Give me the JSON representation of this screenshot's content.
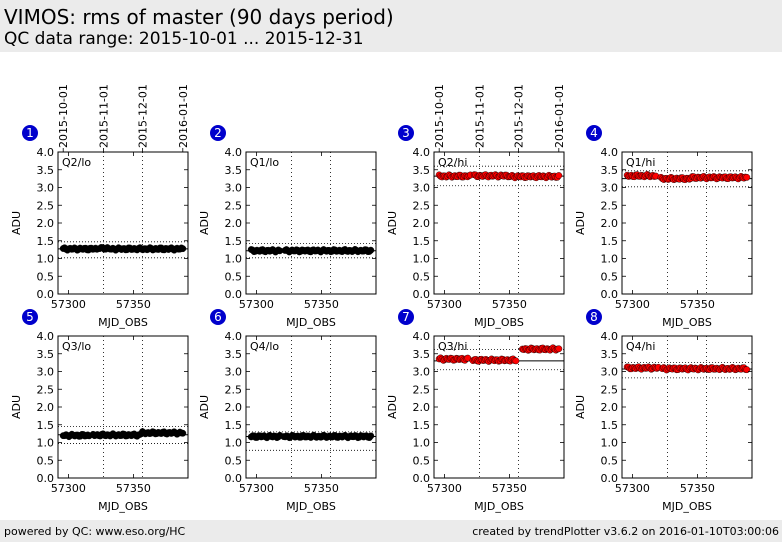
{
  "header": {
    "title": "VIMOS: rms of master (90 days period)",
    "subtitle": "QC data range: 2015-10-01 ... 2015-12-31"
  },
  "footer": {
    "left": "powered by QC: www.eso.org/HC",
    "right": "created by trendPlotter v3.6.2 on 2016-01-10T03:00:06"
  },
  "colors": {
    "lo_points": "#000000",
    "hi_points": "#ff0000",
    "badge": "#0000cc",
    "header_bg": "#ebebeb"
  },
  "chart_data": {
    "type": "scatter",
    "date_ticks": [
      {
        "label": "2015-10-01",
        "mjd": 57296
      },
      {
        "label": "2015-11-01",
        "mjd": 57327
      },
      {
        "label": "2015-12-01",
        "mjd": 57357
      },
      {
        "label": "2016-01-01",
        "mjd": 57388
      }
    ],
    "xlim": [
      57292,
      57392
    ],
    "xticks": [
      57300,
      57350
    ],
    "ylim": [
      0.0,
      4.0
    ],
    "yticks": [
      "0.0",
      "0.5",
      "1.0",
      "1.5",
      "2.0",
      "2.5",
      "3.0",
      "3.5",
      "4.0"
    ],
    "xlabel": "MJD_OBS",
    "ylabel": "ADU",
    "panels": [
      {
        "num": "1",
        "label": "Q2/lo",
        "color": "black",
        "ref": 1.27,
        "upper": 1.47,
        "lower": 1.02,
        "segments": [
          {
            "x0": 57296,
            "x1": 57322,
            "y": 1.27
          },
          {
            "x0": 57324,
            "x1": 57330,
            "y": 1.29
          },
          {
            "x0": 57332,
            "x1": 57388,
            "y": 1.27
          }
        ]
      },
      {
        "num": "2",
        "label": "Q1/lo",
        "color": "black",
        "ref": 1.22,
        "upper": 1.42,
        "lower": 1.02,
        "segments": [
          {
            "x0": 57296,
            "x1": 57318,
            "y": 1.22
          },
          {
            "x0": 57322,
            "x1": 57388,
            "y": 1.22
          }
        ]
      },
      {
        "num": "3",
        "label": "Q2/hi",
        "color": "red",
        "ref": 3.32,
        "upper": 3.6,
        "lower": 3.05,
        "segments": [
          {
            "x0": 57296,
            "x1": 57320,
            "y": 3.32
          },
          {
            "x0": 57323,
            "x1": 57350,
            "y": 3.33
          },
          {
            "x0": 57351,
            "x1": 57388,
            "y": 3.31
          }
        ]
      },
      {
        "num": "4",
        "label": "Q1/hi",
        "color": "red",
        "ref": 3.25,
        "upper": 3.47,
        "lower": 3.02,
        "segments": [
          {
            "x0": 57296,
            "x1": 57318,
            "y": 3.33
          },
          {
            "x0": 57322,
            "x1": 57345,
            "y": 3.25
          },
          {
            "x0": 57346,
            "x1": 57388,
            "y": 3.28
          }
        ]
      },
      {
        "num": "5",
        "label": "Q3/lo",
        "color": "black",
        "ref": 1.22,
        "upper": 1.45,
        "lower": 0.97,
        "segments": [
          {
            "x0": 57296,
            "x1": 57316,
            "y": 1.2
          },
          {
            "x0": 57319,
            "x1": 57355,
            "y": 1.21
          },
          {
            "x0": 57357,
            "x1": 57388,
            "y": 1.27
          }
        ]
      },
      {
        "num": "6",
        "label": "Q4/lo",
        "color": "black",
        "ref": 1.17,
        "upper": 1.3,
        "lower": 0.78,
        "segments": [
          {
            "x0": 57296,
            "x1": 57318,
            "y": 1.17
          },
          {
            "x0": 57321,
            "x1": 57388,
            "y": 1.17
          }
        ]
      },
      {
        "num": "7",
        "label": "Q3/hi",
        "color": "red",
        "ref": 3.3,
        "upper": 3.62,
        "lower": 3.05,
        "segments": [
          {
            "x0": 57296,
            "x1": 57318,
            "y": 3.35
          },
          {
            "x0": 57322,
            "x1": 57355,
            "y": 3.32
          },
          {
            "x0": 57360,
            "x1": 57388,
            "y": 3.63
          }
        ]
      },
      {
        "num": "8",
        "label": "Q4/hi",
        "color": "red",
        "ref": 3.07,
        "upper": 3.25,
        "lower": 2.82,
        "segments": [
          {
            "x0": 57296,
            "x1": 57320,
            "y": 3.1
          },
          {
            "x0": 57323,
            "x1": 57388,
            "y": 3.08
          }
        ]
      }
    ]
  }
}
